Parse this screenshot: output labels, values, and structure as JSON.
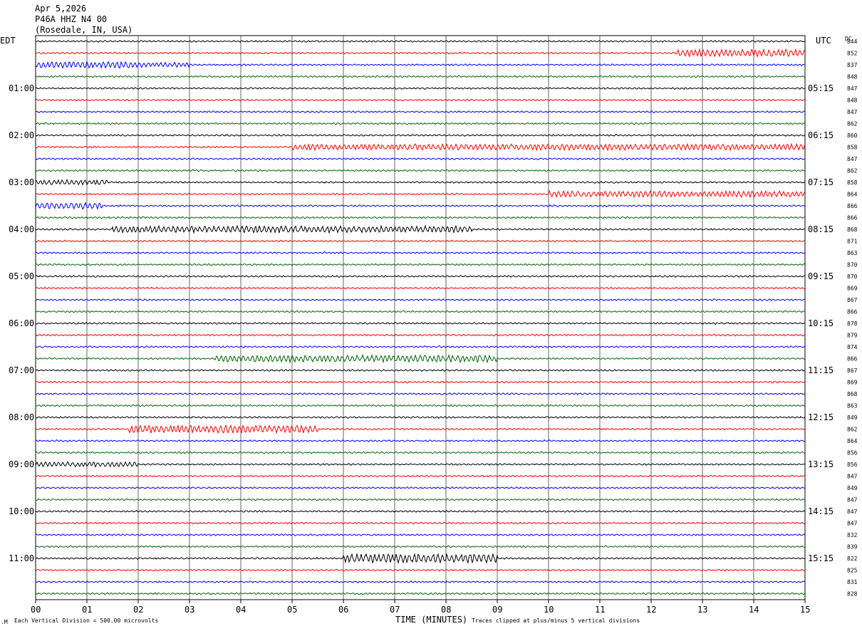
{
  "header": {
    "date": "Apr 5,2026",
    "station": "P46A HHZ N4 00",
    "location": "(Rosedale, IN, USA)"
  },
  "labels": {
    "left_timezone": "EDT",
    "right_timezone": "UTC",
    "dc_header": "DC"
  },
  "footer": {
    "scale_note": "Each Vertical Division =  500.00 microvolts",
    "clip_note": "Traces clipped at plus/minus 5 vertical divisions"
  },
  "chart_data": {
    "type": "line",
    "title": "",
    "xlabel": "TIME (MINUTES)",
    "ylabel": "",
    "xlim": [
      0,
      15
    ],
    "x_ticks": [
      "00",
      "01",
      "02",
      "03",
      "04",
      "05",
      "06",
      "07",
      "08",
      "09",
      "10",
      "11",
      "12",
      "13",
      "14",
      "15"
    ],
    "grid": true,
    "trace_count": 48,
    "traces_per_hour": 4,
    "trace_colors": [
      "#000000",
      "#ff0000",
      "#0000ff",
      "#006400"
    ],
    "left_hour_labels": [
      "01:00",
      "02:00",
      "03:00",
      "04:00",
      "05:00",
      "06:00",
      "07:00",
      "08:00",
      "09:00",
      "10:00",
      "11:00"
    ],
    "right_hour_labels": [
      "05:15",
      "06:15",
      "07:15",
      "08:15",
      "09:15",
      "10:15",
      "11:15",
      "12:15",
      "13:15",
      "14:15",
      "15:15"
    ],
    "dc_offsets": [
      "844",
      "852",
      "837",
      "848",
      "847",
      "848",
      "847",
      "862",
      "860",
      "858",
      "847",
      "862",
      "858",
      "864",
      "866",
      "866",
      "868",
      "871",
      "863",
      "870",
      "870",
      "869",
      "867",
      "866",
      "878",
      "879",
      "874",
      "866",
      "867",
      "869",
      "868",
      "863",
      "849",
      "862",
      "864",
      "856",
      "856",
      "847",
      "849",
      "847",
      "847",
      "847",
      "832",
      "839",
      "822",
      "825",
      "831",
      "828"
    ],
    "events": [
      {
        "trace": 1,
        "from": 12.5,
        "to": 15,
        "amp": 2.0
      },
      {
        "trace": 2,
        "from": 0,
        "to": 2.0,
        "amp": 1.9
      },
      {
        "trace": 2,
        "from": 2.0,
        "to": 3.0,
        "amp": 1.3
      },
      {
        "trace": 9,
        "from": 5.0,
        "to": 15,
        "amp": 1.7
      },
      {
        "trace": 12,
        "from": 0,
        "to": 1.4,
        "amp": 1.4
      },
      {
        "trace": 13,
        "from": 10.0,
        "to": 15,
        "amp": 1.7
      },
      {
        "trace": 14,
        "from": 0,
        "to": 1.3,
        "amp": 1.9
      },
      {
        "trace": 16,
        "from": 1.5,
        "to": 8.5,
        "amp": 1.9
      },
      {
        "trace": 27,
        "from": 3.5,
        "to": 9.0,
        "amp": 2.0
      },
      {
        "trace": 33,
        "from": 1.8,
        "to": 5.5,
        "amp": 2.2
      },
      {
        "trace": 36,
        "from": 0,
        "to": 2.0,
        "amp": 1.4
      },
      {
        "trace": 44,
        "from": 6.0,
        "to": 9.0,
        "amp": 2.6
      }
    ]
  }
}
